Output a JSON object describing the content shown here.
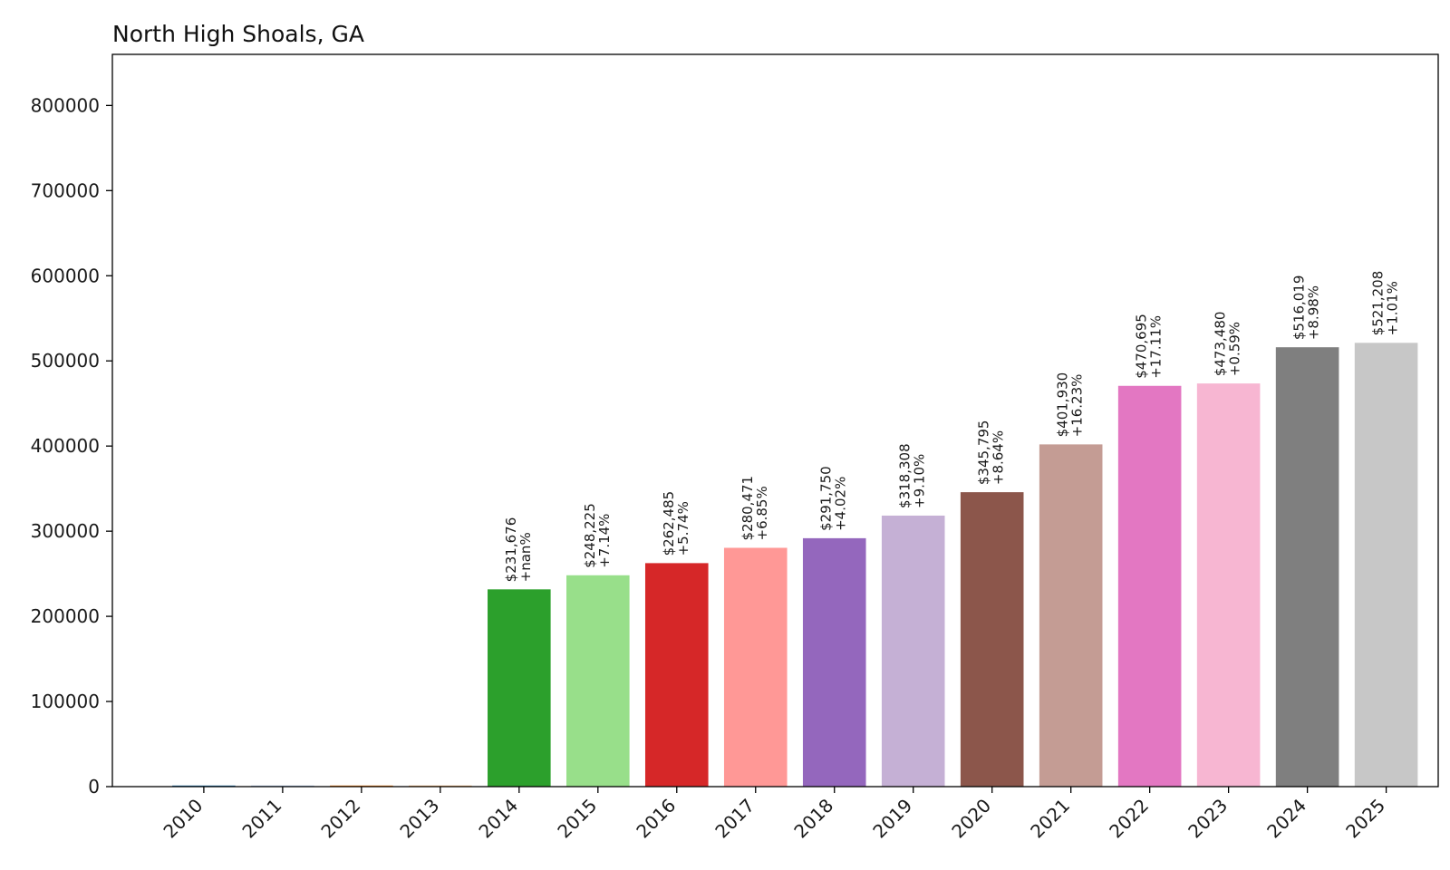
{
  "chart_data": {
    "type": "bar",
    "title": "North High Shoals, GA",
    "xlabel": "",
    "ylabel": "",
    "ylim": [
      0,
      860000
    ],
    "yticks": [
      0,
      100000,
      200000,
      300000,
      400000,
      500000,
      600000,
      700000,
      800000
    ],
    "ytick_labels": [
      "0",
      "100000",
      "200000",
      "300000",
      "400000",
      "500000",
      "600000",
      "700000",
      "800000"
    ],
    "categories": [
      "2010",
      "2011",
      "2012",
      "2013",
      "2014",
      "2015",
      "2016",
      "2017",
      "2018",
      "2019",
      "2020",
      "2021",
      "2022",
      "2023",
      "2024",
      "2025"
    ],
    "values": [
      0,
      0,
      0,
      0,
      231676,
      248225,
      262485,
      280471,
      291750,
      318308,
      345795,
      401930,
      470695,
      473480,
      516019,
      521208
    ],
    "value_labels": [
      "",
      "",
      "",
      "",
      "$231,676",
      "$248,225",
      "$262,485",
      "$280,471",
      "$291,750",
      "$318,308",
      "$345,795",
      "$401,930",
      "$470,695",
      "$473,480",
      "$516,019",
      "$521,208"
    ],
    "change_labels": [
      "",
      "",
      "",
      "",
      "+nan%",
      "+7.14%",
      "+5.74%",
      "+6.85%",
      "+4.02%",
      "+9.10%",
      "+8.64%",
      "+16.23%",
      "+17.11%",
      "+0.59%",
      "+8.98%",
      "+1.01%"
    ],
    "colors": [
      "#1f77b4",
      "#aec7e8",
      "#ff7f0e",
      "#ffbb78",
      "#2ca02c",
      "#98df8a",
      "#d62728",
      "#ff9896",
      "#9467bd",
      "#c5b0d5",
      "#8c564b",
      "#c49c94",
      "#e377c2",
      "#f7b6d2",
      "#7f7f7f",
      "#c7c7c7"
    ],
    "grid": false,
    "legend": "none"
  }
}
